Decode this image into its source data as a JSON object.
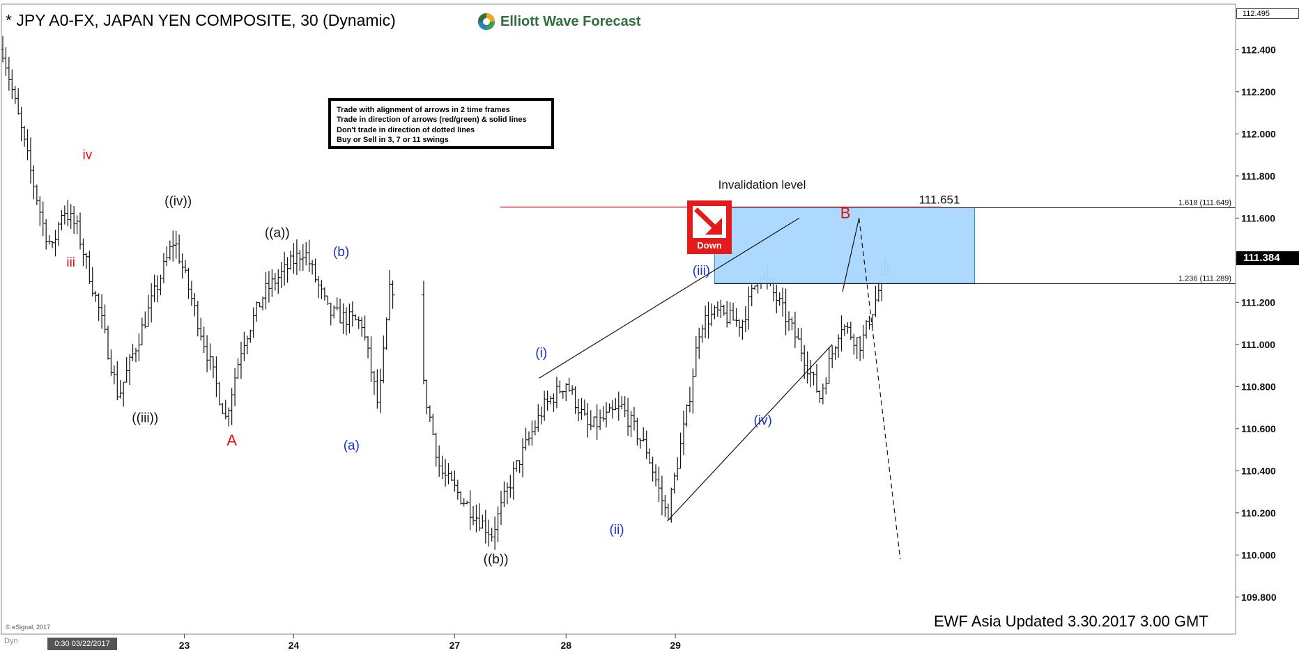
{
  "header": {
    "title": "* JPY A0-FX, JAPAN YEN COMPOSITE, 30 (Dynamic)",
    "brand": "Elliott Wave Forecast"
  },
  "rules_box": {
    "lines": [
      "Trade with alignment of arrows in 2 time frames",
      "Trade in direction of arrows (red/green) & solid lines",
      "Don't trade in direction of dotted lines",
      "Buy or Sell in 3, 7 or 11 swings"
    ]
  },
  "signal": {
    "label": "Down",
    "color": "#e51b1b"
  },
  "footer": {
    "update": "EWF Asia Updated 3.30.2017 3.00 GMT",
    "copyright": "© eSignal, 2017",
    "dyn": "Dyn",
    "start_date": "0:30 03/22/2017"
  },
  "price_axis": {
    "last_price": "111.384",
    "top_price": "112.495"
  },
  "colors": {
    "black_labels": "#111111",
    "red_labels": "#e01010",
    "blue_labels": "#1a33c4",
    "zone_fill": "#aad8ff",
    "zone_border": "#2f8fd0",
    "invalidation_line": "#e01010"
  },
  "chart_data": {
    "type": "bar",
    "subtype": "ohlc",
    "title": "* JPY A0-FX, JAPAN YEN COMPOSITE, 30 (Dynamic)",
    "ylim": [
      109.72,
      112.52
    ],
    "y_ticks": [
      "112.400",
      "112.200",
      "112.000",
      "111.800",
      "111.600",
      "111.400",
      "111.200",
      "111.000",
      "110.800",
      "110.600",
      "110.400",
      "110.200",
      "110.000",
      "109.800"
    ],
    "x_ticks": [
      "23",
      "24",
      "27",
      "28",
      "29"
    ],
    "grid": false,
    "price_path": [
      {
        "t": 0.0,
        "p": 112.4
      },
      {
        "t": 0.7,
        "p": 111.8
      },
      {
        "t": 1.0,
        "p": 111.55
      },
      {
        "t": 1.2,
        "p": 111.45
      },
      {
        "t": 1.45,
        "p": 111.65
      },
      {
        "t": 1.8,
        "p": 111.55
      },
      {
        "t": 2.35,
        "p": 111.15
      },
      {
        "t": 2.8,
        "p": 110.75
      },
      {
        "t": 3.15,
        "p": 110.95
      },
      {
        "t": 3.6,
        "p": 111.2
      },
      {
        "t": 4.15,
        "p": 111.5
      },
      {
        "t": 4.6,
        "p": 111.2
      },
      {
        "t": 5.4,
        "p": 110.65
      },
      {
        "t": 5.8,
        "p": 111.0
      },
      {
        "t": 6.35,
        "p": 111.25
      },
      {
        "t": 7.3,
        "p": 111.45
      },
      {
        "t": 7.9,
        "p": 111.15
      },
      {
        "t": 8.7,
        "p": 111.1
      },
      {
        "t": 9.1,
        "p": 110.7
      },
      {
        "t": 9.4,
        "p": 111.3
      },
      {
        "t": 10.2,
        "p": 110.8
      },
      {
        "t": 10.6,
        "p": 110.4
      },
      {
        "t": 11.4,
        "p": 110.2
      },
      {
        "t": 11.85,
        "p": 110.1
      },
      {
        "t": 12.4,
        "p": 110.4
      },
      {
        "t": 13.1,
        "p": 110.7
      },
      {
        "t": 13.65,
        "p": 110.82
      },
      {
        "t": 14.2,
        "p": 110.6
      },
      {
        "t": 15.0,
        "p": 110.7
      },
      {
        "t": 15.6,
        "p": 110.5
      },
      {
        "t": 16.1,
        "p": 110.18
      },
      {
        "t": 16.6,
        "p": 110.7
      },
      {
        "t": 16.9,
        "p": 111.1
      },
      {
        "t": 17.3,
        "p": 111.15
      },
      {
        "t": 17.9,
        "p": 111.1
      },
      {
        "t": 18.35,
        "p": 111.35
      },
      {
        "t": 18.8,
        "p": 111.2
      },
      {
        "t": 19.3,
        "p": 111.0
      },
      {
        "t": 19.8,
        "p": 110.75
      },
      {
        "t": 20.3,
        "p": 111.1
      },
      {
        "t": 20.8,
        "p": 111.0
      },
      {
        "t": 21.3,
        "p": 111.3
      },
      {
        "t": 21.5,
        "p": 111.38
      }
    ],
    "wave_labels": [
      {
        "text": "iv",
        "t": 2.05,
        "p": 111.88,
        "color": "red"
      },
      {
        "text": "iii",
        "t": 1.65,
        "p": 111.37,
        "color": "red"
      },
      {
        "text": "((iii))",
        "t": 3.45,
        "p": 110.63,
        "color": "black"
      },
      {
        "text": "((iv))",
        "t": 4.25,
        "p": 111.66,
        "color": "black"
      },
      {
        "text": "A",
        "t": 5.55,
        "p": 110.52,
        "color": "red"
      },
      {
        "text": "((a))",
        "t": 6.65,
        "p": 111.51,
        "color": "black"
      },
      {
        "text": "(b)",
        "t": 8.2,
        "p": 111.42,
        "color": "blue"
      },
      {
        "text": "(a)",
        "t": 8.45,
        "p": 110.5,
        "color": "blue"
      },
      {
        "text": "((b))",
        "t": 11.95,
        "p": 109.96,
        "color": "black"
      },
      {
        "text": "(i)",
        "t": 13.05,
        "p": 110.94,
        "color": "blue"
      },
      {
        "text": "(ii)",
        "t": 14.88,
        "p": 110.1,
        "color": "blue"
      },
      {
        "text": "(iii)",
        "t": 16.93,
        "p": 111.33,
        "color": "blue"
      },
      {
        "text": "(iv)",
        "t": 18.42,
        "p": 110.62,
        "color": "blue"
      },
      {
        "text": "B",
        "t": 20.42,
        "p": 111.6,
        "color": "red"
      }
    ],
    "annotations": {
      "invalidation_label": "Invalidation level",
      "invalidation_price": "111.651",
      "fib_1618": "1.618 (111.649)",
      "fib_1236": "1.236 (111.289)",
      "fib_high": 111.649,
      "fib_low": 111.289
    }
  }
}
